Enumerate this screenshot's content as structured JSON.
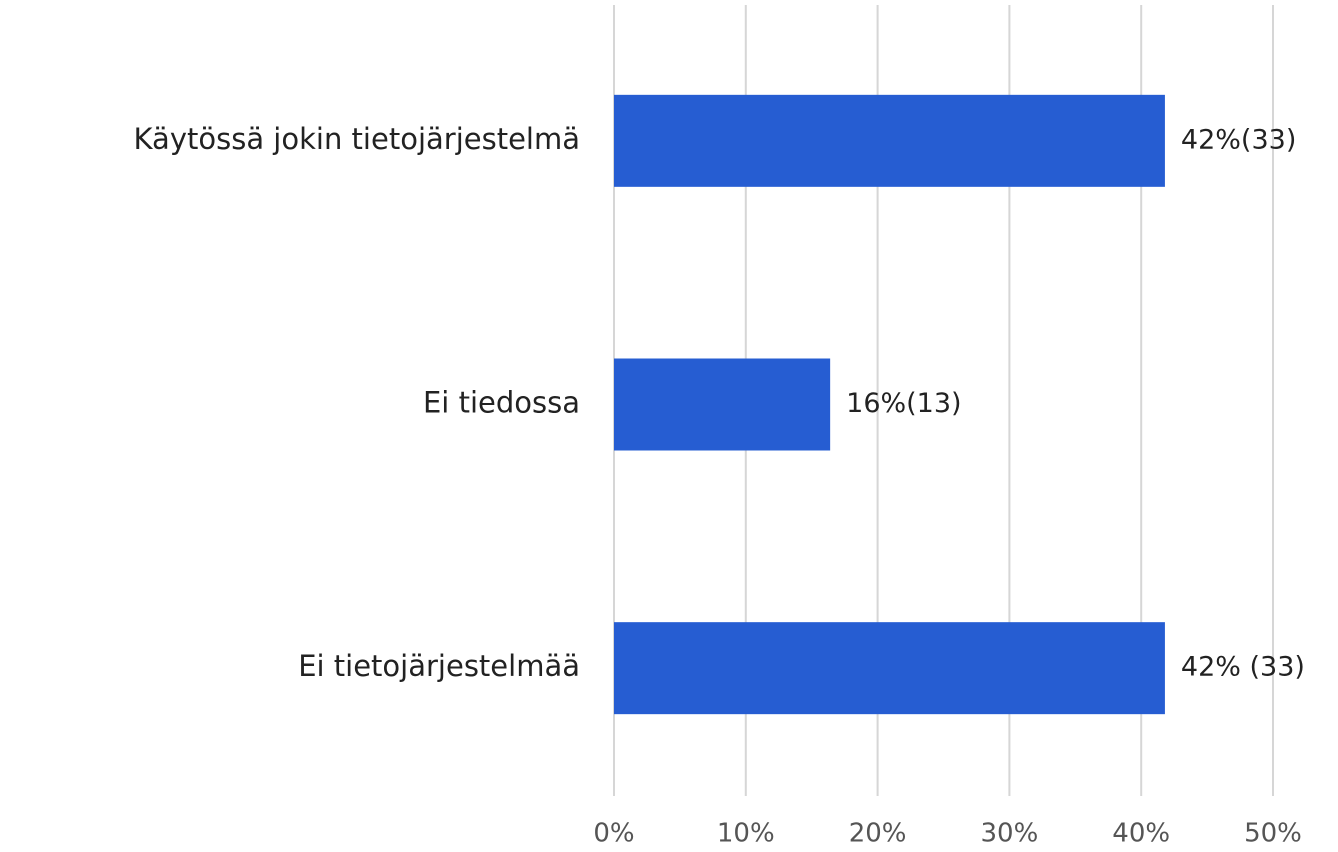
{
  "chart_data": {
    "type": "bar",
    "orientation": "horizontal",
    "categories": [
      "Käytössä jokin tietojärjestelmä",
      "Ei tiedossa",
      "Ei tietojärjestelmää"
    ],
    "values": [
      41.8,
      16.4,
      41.8
    ],
    "value_labels": [
      "42%(33)",
      "16%(13)",
      "42% (33)"
    ],
    "color": "#265dd2",
    "xlim": [
      0,
      50
    ],
    "xticks": [
      {
        "value": 0,
        "label": "0%"
      },
      {
        "value": 10,
        "label": "10%"
      },
      {
        "value": 20,
        "label": "20%"
      },
      {
        "value": 30,
        "label": "30%"
      },
      {
        "value": 40,
        "label": "40%"
      },
      {
        "value": 50,
        "label": "50%"
      }
    ],
    "grid": true
  }
}
